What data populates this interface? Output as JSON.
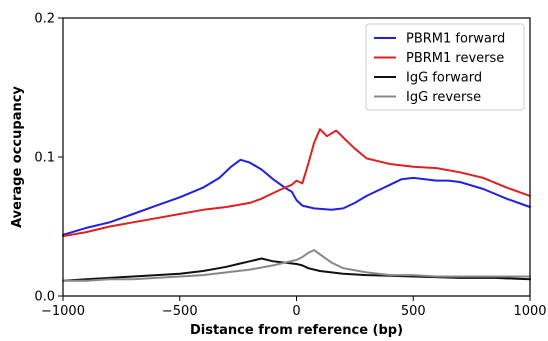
{
  "chart_data": {
    "type": "line",
    "title": "",
    "xlabel": "Distance from reference (bp)",
    "ylabel": "Average occupancy",
    "xlim": [
      -1000,
      1000
    ],
    "ylim": [
      0,
      0.2
    ],
    "x_ticks": [
      -1000,
      -500,
      0,
      500,
      1000
    ],
    "x_tick_labels": [
      "−1000",
      "−500",
      "0",
      "500",
      "1000"
    ],
    "y_ticks": [
      0,
      0.1,
      0.2
    ],
    "y_tick_labels": [
      "0.0",
      "0.1",
      "0.2"
    ],
    "grid": false,
    "legend_position": "top-right",
    "series": [
      {
        "name": "PBRM1 forward",
        "color": "#2020e0",
        "points": [
          [
            -1000,
            0.044
          ],
          [
            -900,
            0.049
          ],
          [
            -800,
            0.053
          ],
          [
            -700,
            0.059
          ],
          [
            -600,
            0.065
          ],
          [
            -500,
            0.071
          ],
          [
            -400,
            0.078
          ],
          [
            -330,
            0.085
          ],
          [
            -280,
            0.093
          ],
          [
            -240,
            0.098
          ],
          [
            -200,
            0.096
          ],
          [
            -150,
            0.091
          ],
          [
            -100,
            0.084
          ],
          [
            -50,
            0.078
          ],
          [
            -20,
            0.075
          ],
          [
            0,
            0.069
          ],
          [
            25,
            0.065
          ],
          [
            75,
            0.063
          ],
          [
            150,
            0.062
          ],
          [
            200,
            0.063
          ],
          [
            250,
            0.067
          ],
          [
            300,
            0.072
          ],
          [
            350,
            0.076
          ],
          [
            400,
            0.08
          ],
          [
            450,
            0.084
          ],
          [
            500,
            0.085
          ],
          [
            550,
            0.084
          ],
          [
            600,
            0.083
          ],
          [
            650,
            0.083
          ],
          [
            700,
            0.082
          ],
          [
            800,
            0.077
          ],
          [
            900,
            0.07
          ],
          [
            1000,
            0.064
          ]
        ]
      },
      {
        "name": "PBRM1 reverse",
        "color": "#e02020",
        "points": [
          [
            -1000,
            0.043
          ],
          [
            -900,
            0.046
          ],
          [
            -800,
            0.05
          ],
          [
            -700,
            0.053
          ],
          [
            -600,
            0.056
          ],
          [
            -500,
            0.059
          ],
          [
            -400,
            0.062
          ],
          [
            -300,
            0.064
          ],
          [
            -200,
            0.067
          ],
          [
            -150,
            0.07
          ],
          [
            -100,
            0.074
          ],
          [
            -50,
            0.078
          ],
          [
            -20,
            0.08
          ],
          [
            0,
            0.083
          ],
          [
            25,
            0.081
          ],
          [
            50,
            0.095
          ],
          [
            75,
            0.11
          ],
          [
            100,
            0.12
          ],
          [
            130,
            0.115
          ],
          [
            170,
            0.119
          ],
          [
            200,
            0.114
          ],
          [
            250,
            0.106
          ],
          [
            300,
            0.099
          ],
          [
            400,
            0.095
          ],
          [
            500,
            0.093
          ],
          [
            600,
            0.092
          ],
          [
            700,
            0.089
          ],
          [
            800,
            0.085
          ],
          [
            900,
            0.078
          ],
          [
            1000,
            0.072
          ]
        ]
      },
      {
        "name": "IgG forward",
        "color": "#111111",
        "points": [
          [
            -1000,
            0.011
          ],
          [
            -900,
            0.012
          ],
          [
            -800,
            0.013
          ],
          [
            -700,
            0.014
          ],
          [
            -600,
            0.015
          ],
          [
            -500,
            0.016
          ],
          [
            -400,
            0.018
          ],
          [
            -300,
            0.021
          ],
          [
            -250,
            0.023
          ],
          [
            -200,
            0.025
          ],
          [
            -150,
            0.027
          ],
          [
            -100,
            0.025
          ],
          [
            -50,
            0.024
          ],
          [
            0,
            0.023
          ],
          [
            25,
            0.022
          ],
          [
            50,
            0.02
          ],
          [
            100,
            0.018
          ],
          [
            200,
            0.016
          ],
          [
            300,
            0.015
          ],
          [
            500,
            0.014
          ],
          [
            700,
            0.013
          ],
          [
            850,
            0.013
          ],
          [
            1000,
            0.012
          ]
        ]
      },
      {
        "name": "IgG reverse",
        "color": "#888888",
        "points": [
          [
            -1000,
            0.011
          ],
          [
            -900,
            0.011
          ],
          [
            -800,
            0.012
          ],
          [
            -700,
            0.012
          ],
          [
            -600,
            0.013
          ],
          [
            -500,
            0.014
          ],
          [
            -400,
            0.015
          ],
          [
            -300,
            0.017
          ],
          [
            -200,
            0.019
          ],
          [
            -100,
            0.022
          ],
          [
            -50,
            0.024
          ],
          [
            0,
            0.026
          ],
          [
            25,
            0.028
          ],
          [
            50,
            0.031
          ],
          [
            75,
            0.033
          ],
          [
            100,
            0.03
          ],
          [
            150,
            0.024
          ],
          [
            200,
            0.02
          ],
          [
            300,
            0.017
          ],
          [
            400,
            0.015
          ],
          [
            500,
            0.015
          ],
          [
            600,
            0.014
          ],
          [
            800,
            0.014
          ],
          [
            1000,
            0.014
          ]
        ]
      }
    ]
  }
}
